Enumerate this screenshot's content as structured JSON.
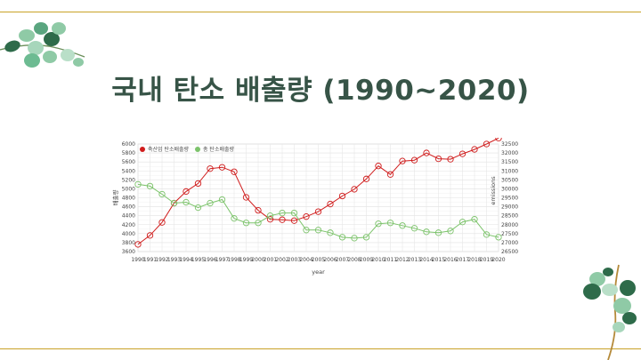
{
  "slide": {
    "title": "국내 탄소 배출량 (1990~2020)"
  },
  "colors": {
    "accent_line": "#c9a227",
    "title": "#375447",
    "series_red": "#d01c1c",
    "series_green": "#7cc36b",
    "leaf_dark": "#2e6b4a",
    "leaf_light": "#8fcaa6"
  },
  "chart_data": {
    "type": "line",
    "xlabel": "year",
    "ylabel_left": "배출량",
    "ylabel_right": "emissions",
    "ylim_left": [
      3600,
      6000
    ],
    "yticks_left": [
      3600,
      3800,
      4000,
      4200,
      4400,
      4600,
      4800,
      5000,
      5200,
      5400,
      5600,
      5800,
      6000
    ],
    "ylim_right": [
      26500,
      32500
    ],
    "yticks_right": [
      26500,
      27000,
      27500,
      28000,
      28500,
      29000,
      29500,
      30000,
      30500,
      31000,
      31500,
      32000,
      32500
    ],
    "x": [
      1990,
      1991,
      1992,
      1993,
      1994,
      1995,
      1996,
      1997,
      1998,
      1999,
      2000,
      2001,
      2002,
      2003,
      2004,
      2005,
      2006,
      2007,
      2008,
      2009,
      2010,
      2011,
      2012,
      2013,
      2014,
      2015,
      2016,
      2017,
      2018,
      2019,
      2020
    ],
    "grid": true,
    "legend_position": "top-left",
    "series": [
      {
        "name": "축산업 탄소배출량",
        "axis": "left",
        "color": "#d01c1c",
        "values": [
          3760,
          3960,
          4250,
          4680,
          4940,
          5120,
          5450,
          5480,
          5380,
          4810,
          4520,
          4320,
          4310,
          4290,
          4380,
          4490,
          4660,
          4840,
          4990,
          5220,
          5510,
          5320,
          5620,
          5640,
          5800,
          5670,
          5660,
          5780,
          5880,
          6000,
          6130
        ]
      },
      {
        "name": "총 탄소배출량",
        "axis": "right",
        "color": "#7cc36b",
        "values": [
          30250,
          30150,
          29700,
          29200,
          29250,
          28950,
          29200,
          29400,
          28350,
          28100,
          28100,
          28500,
          28650,
          28650,
          27700,
          27700,
          27550,
          27300,
          27250,
          27300,
          28050,
          28100,
          27950,
          27800,
          27600,
          27550,
          27650,
          28150,
          28300,
          27450,
          27300
        ]
      }
    ]
  }
}
